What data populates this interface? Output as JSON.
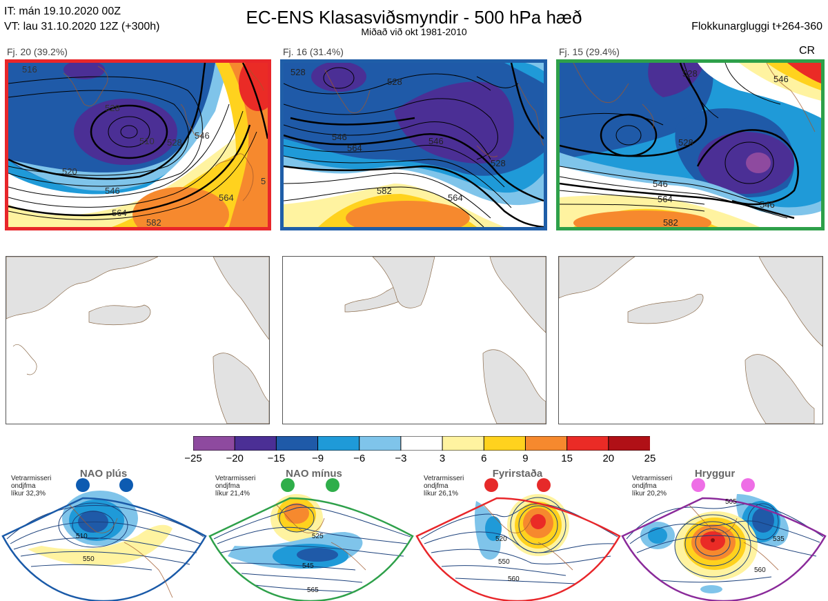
{
  "header": {
    "init_time": "IT: mán 19.10.2020 00Z",
    "valid_time": "VT: lau 31.10.2020 12Z  (+300h)",
    "title": "EC-ENS Klasasviðsmyndir - 500 hPa hæð",
    "subtitle": "Miðað við okt 1981-2010",
    "window": "Flokkunargluggi t+264-360"
  },
  "clusters": [
    {
      "label": "Fj. 20 (39.2%)",
      "frame_color": "#e8262a",
      "contour_labels": [
        "516",
        "528",
        "510",
        "528",
        "546",
        "520",
        "546",
        "564",
        "564",
        "582",
        "5"
      ]
    },
    {
      "label": "Fj. 16 (31.4%)",
      "frame_color": "#1f5ea8",
      "contour_labels": [
        "528",
        "528",
        "546",
        "564",
        "546",
        "528",
        "582",
        "564"
      ]
    },
    {
      "label": "Fj. 15 (29.4%)",
      "frame_color": "#2ea04a",
      "contour_labels": [
        "528",
        "546",
        "528",
        "546",
        "564",
        "546",
        "582"
      ]
    }
  ],
  "cr_label": "CR",
  "colorbar": {
    "ticks": [
      "−25",
      "−20",
      "−15",
      "−9",
      "−6",
      "−3",
      "3",
      "6",
      "9",
      "15",
      "20",
      "25"
    ],
    "colors": [
      "#8e4a9f",
      "#4b2f95",
      "#1f5aa8",
      "#1f9ad8",
      "#7fc4ea",
      "#ffffff",
      "#fff3a0",
      "#ffd21e",
      "#f6892e",
      "#ea2b26",
      "#b01016"
    ]
  },
  "regimes": [
    {
      "name": "NAO plús",
      "note": [
        "Vetrarmisseri",
        "ondjfma",
        "líkur 32,3%"
      ],
      "dot_color": "#0d5bb1",
      "frame_color": "#1a5aa8",
      "contour_labels": [
        "510",
        "550"
      ]
    },
    {
      "name": "NAO mínus",
      "note": [
        "Vetrarmisseri",
        "ondjfma",
        "líkur 21,4%"
      ],
      "dot_color": "#2fae4a",
      "frame_color": "#2ea04a",
      "contour_labels": [
        "525",
        "545",
        "565"
      ]
    },
    {
      "name": "Fyrirstaða",
      "note": [
        "Vetrarmisseri",
        "ondjfma",
        "líkur 26,1%"
      ],
      "dot_color": "#e62a2a",
      "frame_color": "#e8262a",
      "contour_labels": [
        "520",
        "550",
        "560"
      ]
    },
    {
      "name": "Hryggur",
      "note": [
        "Vetrarmisseri",
        "ondjfma",
        "líkur 20,2%"
      ],
      "dot_color": "#ee6ee6",
      "frame_color": "#8a2a9a",
      "contour_labels": [
        "505",
        "535",
        "560"
      ]
    }
  ]
}
